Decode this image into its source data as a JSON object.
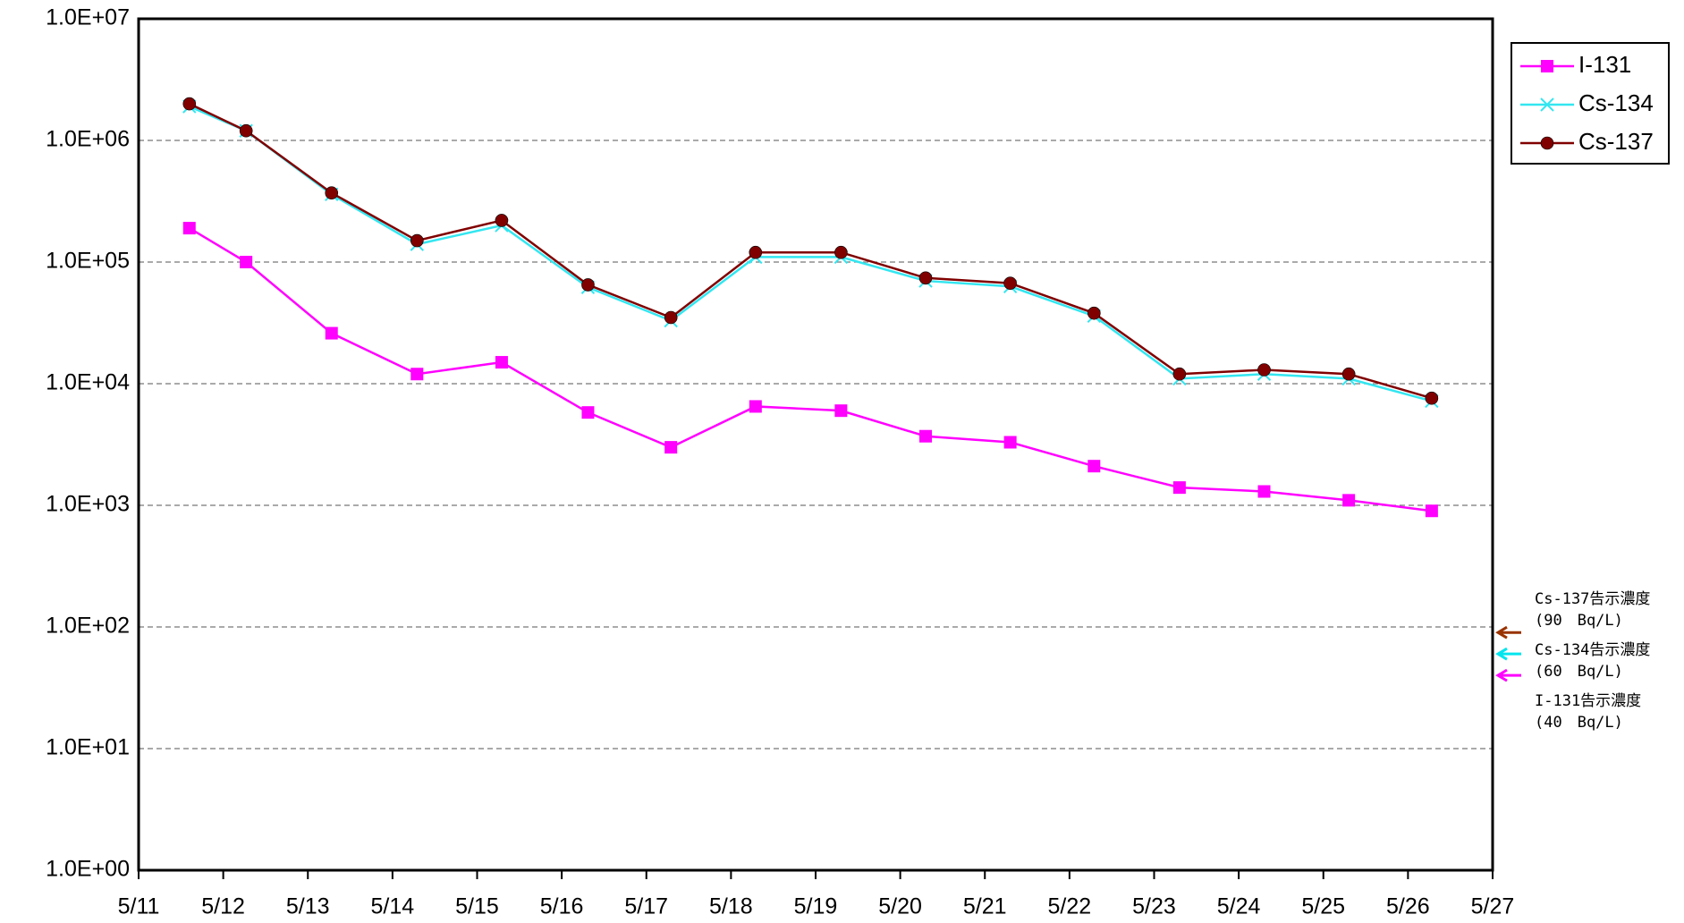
{
  "chart_data": {
    "type": "line",
    "log_scale": true,
    "grid": true,
    "legend": "top-right",
    "x": [
      11.6,
      12.27,
      13.28,
      14.29,
      15.29,
      16.31,
      17.29,
      18.29,
      19.3,
      20.3,
      21.3,
      22.29,
      23.3,
      24.3,
      25.3,
      26.28
    ],
    "xlim": [
      11,
      27
    ],
    "xticks": [
      {
        "value": 11,
        "label": "5/11"
      },
      {
        "value": 12,
        "label": "5/12"
      },
      {
        "value": 13,
        "label": "5/13"
      },
      {
        "value": 14,
        "label": "5/14"
      },
      {
        "value": 15,
        "label": "5/15"
      },
      {
        "value": 16,
        "label": "5/16"
      },
      {
        "value": 17,
        "label": "5/17"
      },
      {
        "value": 18,
        "label": "5/18"
      },
      {
        "value": 19,
        "label": "5/19"
      },
      {
        "value": 20,
        "label": "5/20"
      },
      {
        "value": 21,
        "label": "5/21"
      },
      {
        "value": 22,
        "label": "5/22"
      },
      {
        "value": 23,
        "label": "5/23"
      },
      {
        "value": 24,
        "label": "5/24"
      },
      {
        "value": 25,
        "label": "5/25"
      },
      {
        "value": 26,
        "label": "5/26"
      },
      {
        "value": 27,
        "label": "5/27"
      }
    ],
    "ylim": [
      1,
      10000000
    ],
    "yticks": [
      {
        "value": 1,
        "label": "1.0E+00"
      },
      {
        "value": 10,
        "label": "1.0E+01"
      },
      {
        "value": 100,
        "label": "1.0E+02"
      },
      {
        "value": 1000,
        "label": "1.0E+03"
      },
      {
        "value": 10000,
        "label": "1.0E+04"
      },
      {
        "value": 100000,
        "label": "1.0E+05"
      },
      {
        "value": 1000000,
        "label": "1.0E+06"
      },
      {
        "value": 10000000,
        "label": "1.0E+07"
      }
    ],
    "series": [
      {
        "name": "I-131",
        "color": "#ff00ff",
        "marker": "square",
        "values": [
          190000,
          100000,
          26000,
          12000,
          15000,
          5800,
          3000,
          6500,
          6000,
          3700,
          3300,
          2100,
          1400,
          1300,
          1100,
          900
        ]
      },
      {
        "name": "Cs-134",
        "color": "#33e6f0",
        "marker": "cross",
        "values": [
          1900000,
          1200000,
          360000,
          140000,
          200000,
          62000,
          33000,
          110000,
          110000,
          70000,
          63000,
          36000,
          11000,
          12000,
          11000,
          7200
        ]
      },
      {
        "name": "Cs-137",
        "color": "#800000",
        "marker": "circle",
        "values": [
          2000000,
          1200000,
          370000,
          150000,
          220000,
          65000,
          35000,
          120000,
          120000,
          74000,
          67000,
          38000,
          12000,
          13000,
          12000,
          7600
        ]
      }
    ],
    "annotations": [
      {
        "text": "Cs-137告示濃度",
        "note": "(90　Bq/L)",
        "value": 90,
        "color": "#993300"
      },
      {
        "text": "Cs-134告示濃度",
        "note": "(60　Bq/L)",
        "value": 60,
        "color": "#00e5ee"
      },
      {
        "text": "I-131告示濃度",
        "note": "(40　Bq/L)",
        "value": 40,
        "color": "#ff00ff"
      }
    ]
  }
}
